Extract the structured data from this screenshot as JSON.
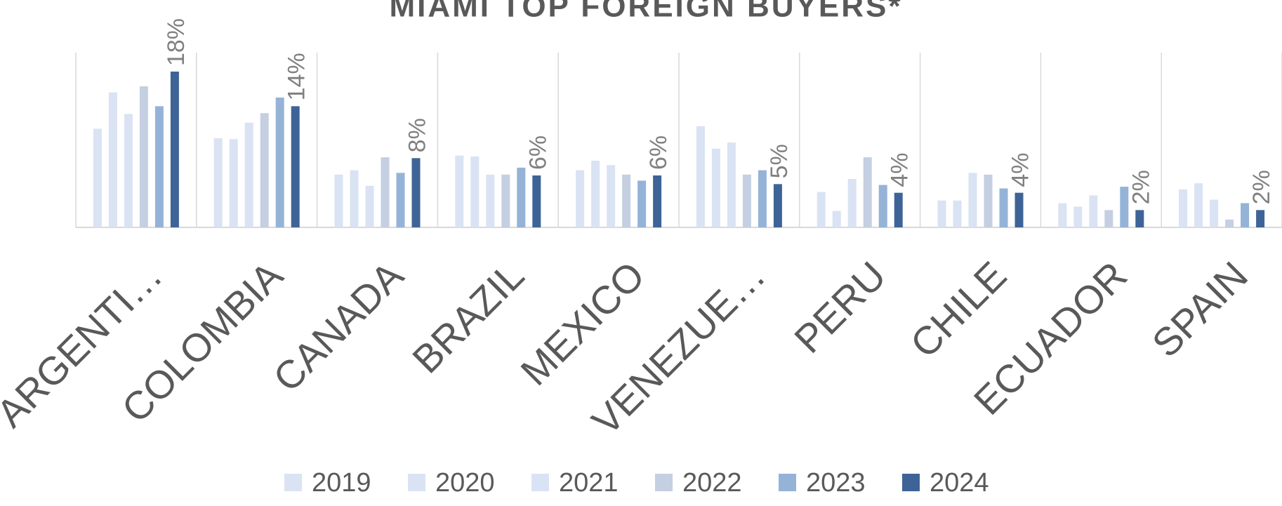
{
  "chart_data": {
    "type": "bar",
    "title": "MIAMI TOP FOREIGN BUYERS*",
    "categories": [
      "ARGENTI…",
      "COLOMBIA",
      "CANADA",
      "BRAZIL",
      "MEXICO",
      "VENEZUE…",
      "PERU",
      "CHILE",
      "ECUADOR",
      "SPAIN"
    ],
    "series": [
      {
        "name": "2019",
        "color": "#dae3f3",
        "values": [
          11.4,
          10.3,
          6.1,
          8.3,
          6.6,
          11.7,
          4.1,
          3.1,
          2.8,
          4.4
        ]
      },
      {
        "name": "2020",
        "color": "#dae3f3",
        "values": [
          15.6,
          10.2,
          6.6,
          8.2,
          7.7,
          9.1,
          1.9,
          3.1,
          2.4,
          5.1
        ]
      },
      {
        "name": "2021",
        "color": "#dae3f3",
        "values": [
          13.1,
          12.1,
          4.8,
          6.1,
          7.2,
          9.8,
          5.6,
          6.3,
          3.7,
          3.2
        ]
      },
      {
        "name": "2022",
        "color": "#c5cfe2",
        "values": [
          16.3,
          13.2,
          8.1,
          6.1,
          6.1,
          6.1,
          8.1,
          6.1,
          2.0,
          0.9
        ]
      },
      {
        "name": "2023",
        "color": "#95b3d7",
        "values": [
          14.0,
          15.0,
          6.3,
          6.9,
          5.4,
          6.6,
          4.9,
          4.5,
          4.7,
          2.8
        ]
      },
      {
        "name": "2024",
        "color": "#3e6497",
        "values": [
          18,
          14,
          8,
          6,
          6,
          5,
          4,
          4,
          2,
          2
        ],
        "value_labels": [
          "18%",
          "14%",
          "8%",
          "6%",
          "6%",
          "5%",
          "4%",
          "4%",
          "2%",
          "2%"
        ]
      }
    ],
    "legend": "bottom"
  }
}
